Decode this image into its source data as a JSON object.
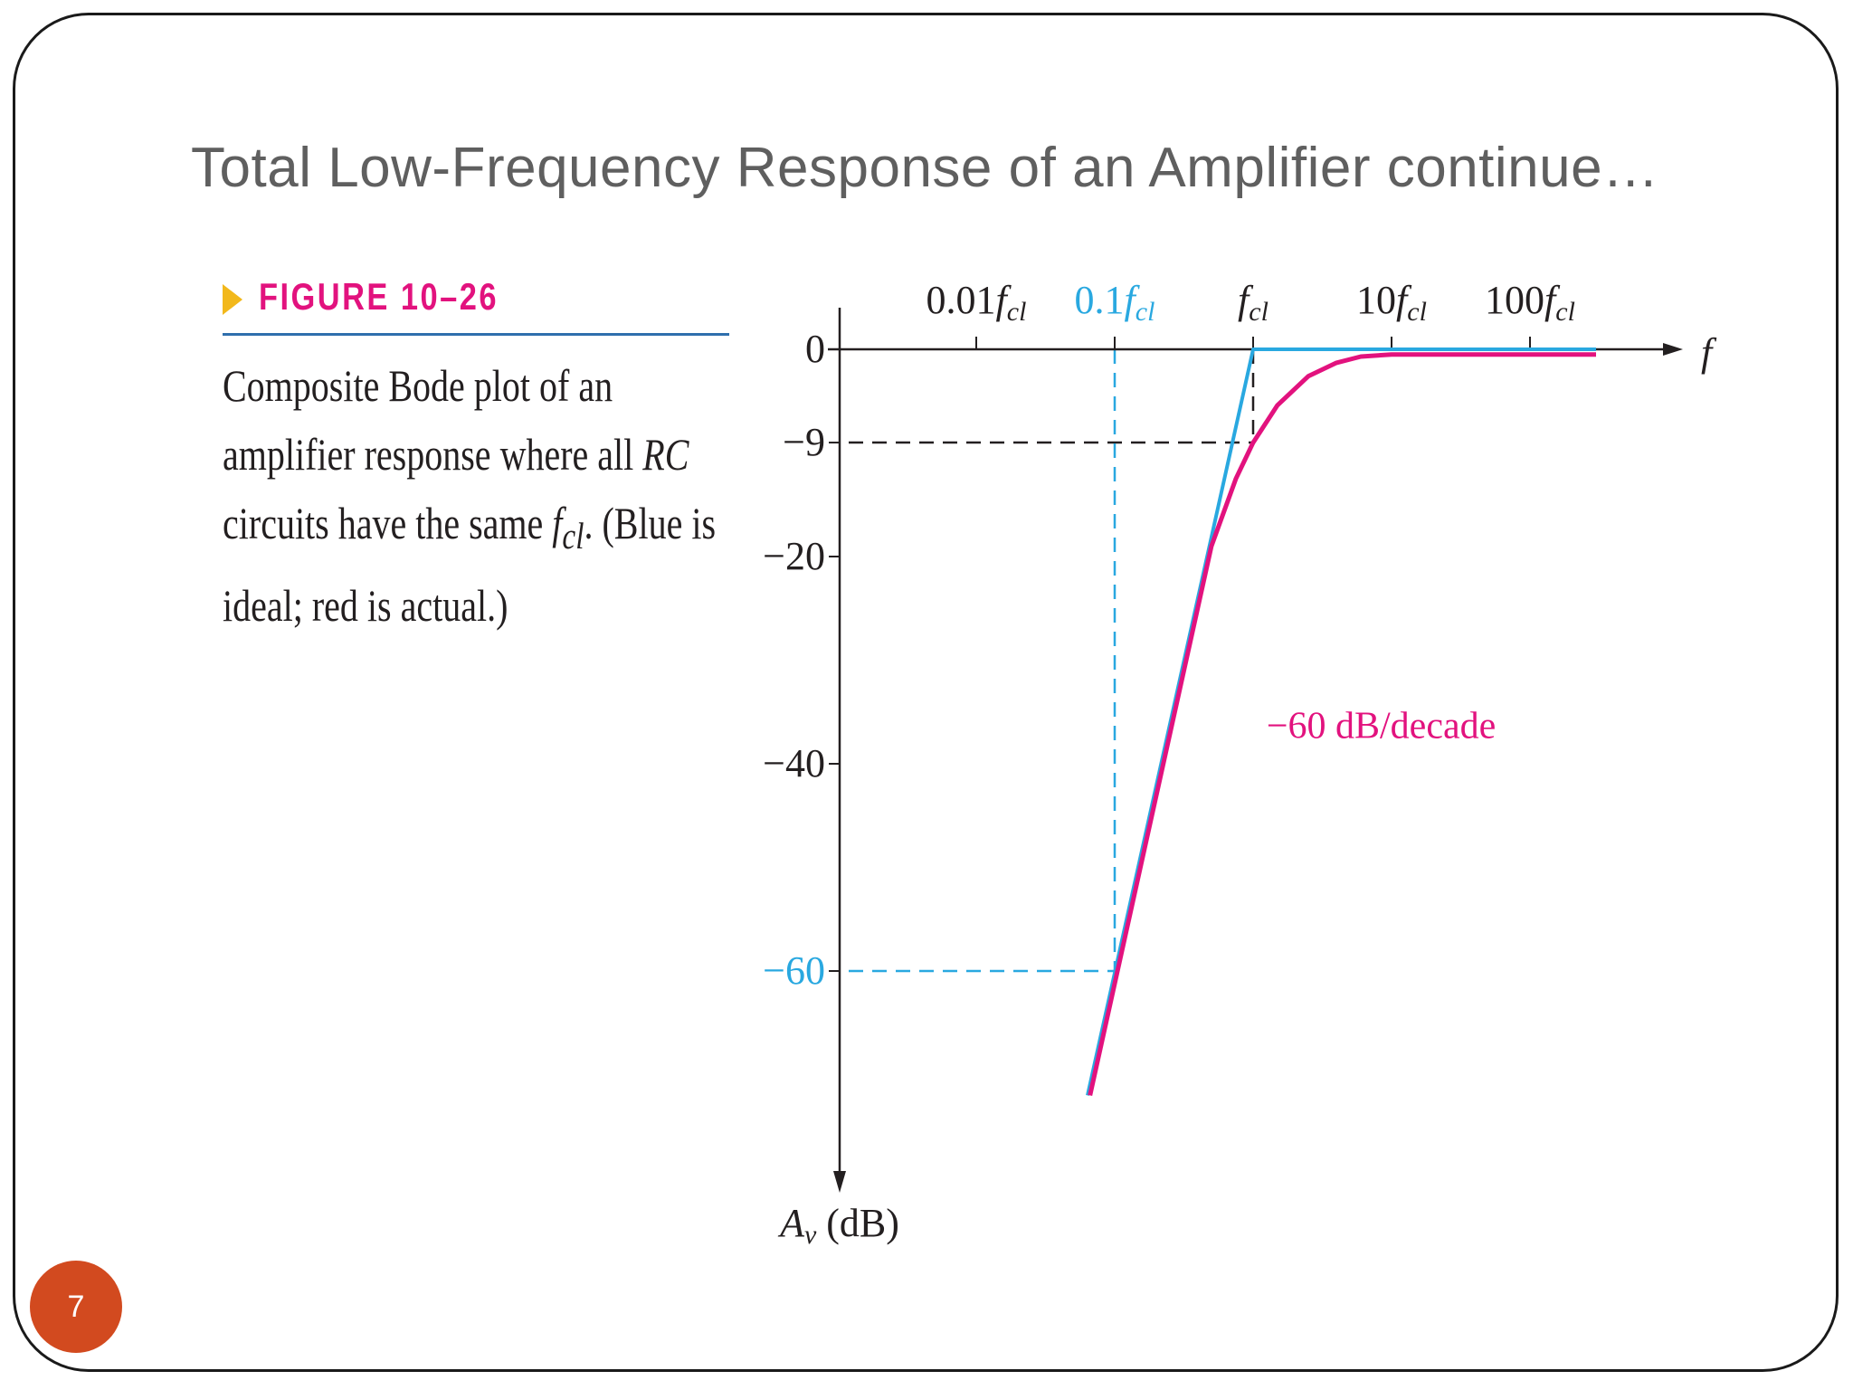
{
  "slide": {
    "title": "Total Low-Frequency Response of an Amplifier continue…",
    "page_number": "7"
  },
  "figure": {
    "label": "FIGURE 10–26",
    "caption": "Composite Bode plot of an amplifier response where all RC circuits have the same fcl. (Blue is ideal; red is actual.)",
    "caption_parts": {
      "text1": "Composite Bode plot of an amplifier response where all ",
      "rc": "RC",
      "text2": " circuits have the same ",
      "f": "f",
      "sub": "cl",
      "text3": ". (Blue is ideal; red is actual.)"
    }
  },
  "chart_data": {
    "type": "line",
    "x_axis": {
      "label": "f",
      "scale": "log",
      "ticks": [
        {
          "value": 0.01,
          "coef": "0.01",
          "sym": "f",
          "sub": "cl",
          "color": "#231f20"
        },
        {
          "value": 0.1,
          "coef": "0.1",
          "sym": "f",
          "sub": "cl",
          "color": "#29a8e0"
        },
        {
          "value": 1,
          "coef": "",
          "sym": "f",
          "sub": "cl",
          "color": "#231f20"
        },
        {
          "value": 10,
          "coef": "10",
          "sym": "f",
          "sub": "cl",
          "color": "#231f20"
        },
        {
          "value": 100,
          "coef": "100",
          "sym": "f",
          "sub": "cl",
          "color": "#231f20"
        }
      ]
    },
    "y_axis": {
      "label_main": "A",
      "label_sub": "v",
      "label_unit": " (dB)",
      "ticks": [
        {
          "value": 0,
          "label": "0",
          "color": "#231f20"
        },
        {
          "value": -9,
          "label": "−9",
          "color": "#231f20"
        },
        {
          "value": -20,
          "label": "−20",
          "color": "#231f20"
        },
        {
          "value": -40,
          "label": "−40",
          "color": "#231f20"
        },
        {
          "value": -60,
          "label": "−60",
          "color": "#29a8e0"
        }
      ]
    },
    "series": [
      {
        "name": "ideal",
        "color": "#29a8e0",
        "points": [
          [
            0.0637,
            -72
          ],
          [
            1,
            0
          ],
          [
            300,
            0
          ]
        ]
      },
      {
        "name": "actual",
        "color": "#e2127e",
        "points": [
          [
            0.0663,
            -72
          ],
          [
            0.5,
            -19
          ],
          [
            0.75,
            -12.5
          ],
          [
            1,
            -9
          ],
          [
            1.5,
            -5.4
          ],
          [
            2.5,
            -2.6
          ],
          [
            4,
            -1.3
          ],
          [
            6,
            -0.7
          ],
          [
            10,
            -0.5
          ],
          [
            300,
            -0.5
          ]
        ]
      }
    ],
    "reference_lines": [
      {
        "kind": "horizontal",
        "y": -9,
        "x_to": 1,
        "color": "#231f20",
        "style": "dashed"
      },
      {
        "kind": "vertical",
        "x": 1,
        "y_from": 0,
        "y_to": -9,
        "color": "#231f20",
        "style": "dashed"
      },
      {
        "kind": "horizontal",
        "y": -60,
        "x_to": 0.1,
        "color": "#29a8e0",
        "style": "dashed"
      },
      {
        "kind": "vertical",
        "x": 0.1,
        "y_from": 0,
        "y_to": -60,
        "color": "#29a8e0",
        "style": "dashed"
      }
    ],
    "annotations": [
      {
        "text": "−60 dB/decade",
        "color": "#e2127e",
        "x": 1.25,
        "y": -37.5
      }
    ]
  }
}
